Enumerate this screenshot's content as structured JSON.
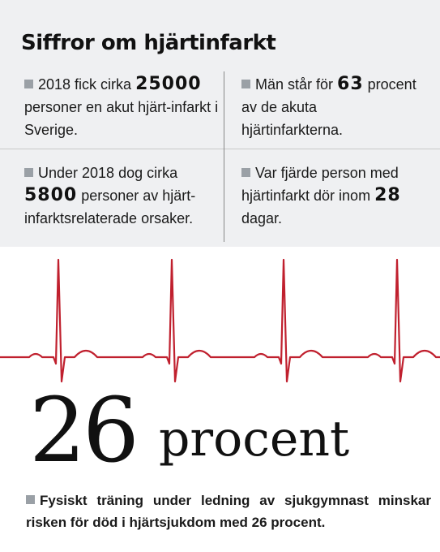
{
  "title": "Siffror om hjärtinfarkt",
  "facts": [
    {
      "pre": "2018 fick cirka ",
      "number": "25000",
      "post": " personer en akut hjärt-infarkt i Sverige."
    },
    {
      "pre": "Män står för ",
      "number": "63",
      "post": " procent av de akuta hjärtinfarkterna."
    },
    {
      "pre": "Under 2018 dog cirka ",
      "number": "5800",
      "post": " personer av hjärt-infarktsrelaterade orsaker."
    },
    {
      "pre": "Var fjärde person med hjärtinfarkt dör inom ",
      "number": "28",
      "post": " dagar."
    }
  ],
  "headline": {
    "number": "26",
    "word": "procent"
  },
  "footnote": "Fysiskt träning under ledning av sjukgymnast minskar risken för död i hjärtsjukdom med 26 procent.",
  "colors": {
    "background_box": "#eff0f2",
    "ecg": "#c0202e",
    "bullet": "#9aa0a6"
  }
}
